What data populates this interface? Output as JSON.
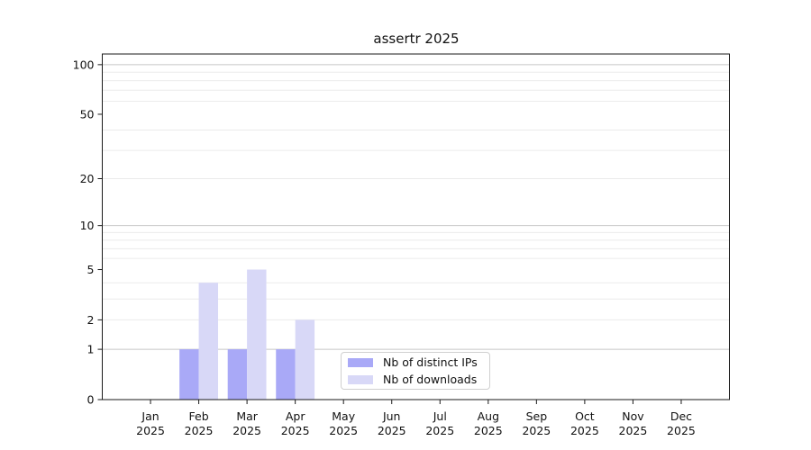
{
  "title": "assertr 2025",
  "colors": {
    "bar_distinct_ips": "#a9a9f7",
    "bar_downloads": "#d8d8f7",
    "grid_major": "#c8c8c8",
    "grid_minor": "#ebebeb",
    "spine": "#1a1a1a",
    "legend_border": "#d0d0d0",
    "background": "#ffffff"
  },
  "legend": {
    "items": [
      {
        "label": "Nb of distinct IPs",
        "color": "#a9a9f7"
      },
      {
        "label": "Nb of downloads",
        "color": "#d8d8f7"
      }
    ]
  },
  "chart_data": {
    "type": "bar",
    "title": "assertr 2025",
    "categories": [
      "Jan",
      "Feb",
      "Mar",
      "Apr",
      "May",
      "Jun",
      "Jul",
      "Aug",
      "Sep",
      "Oct",
      "Nov",
      "Dec"
    ],
    "year": "2025",
    "series": [
      {
        "name": "Nb of distinct IPs",
        "color": "#a9a9f7",
        "values": [
          0,
          1,
          1,
          1,
          0,
          0,
          0,
          0,
          0,
          0,
          0,
          0
        ]
      },
      {
        "name": "Nb of downloads",
        "color": "#d8d8f7",
        "values": [
          0,
          4,
          5,
          2,
          0,
          0,
          0,
          0,
          0,
          0,
          0,
          0
        ]
      }
    ],
    "xlabel": "",
    "ylabel": "",
    "yscale": "log1p",
    "yticks": [
      0,
      1,
      2,
      5,
      10,
      20,
      50,
      100
    ],
    "major_gridlines": [
      1,
      10,
      100
    ],
    "minor_gridlines": [
      2,
      3,
      4,
      6,
      7,
      8,
      9,
      20,
      30,
      40,
      60,
      70,
      80,
      90
    ],
    "ylim": [
      0,
      116
    ],
    "grid": true,
    "legend_position": "lower center"
  }
}
